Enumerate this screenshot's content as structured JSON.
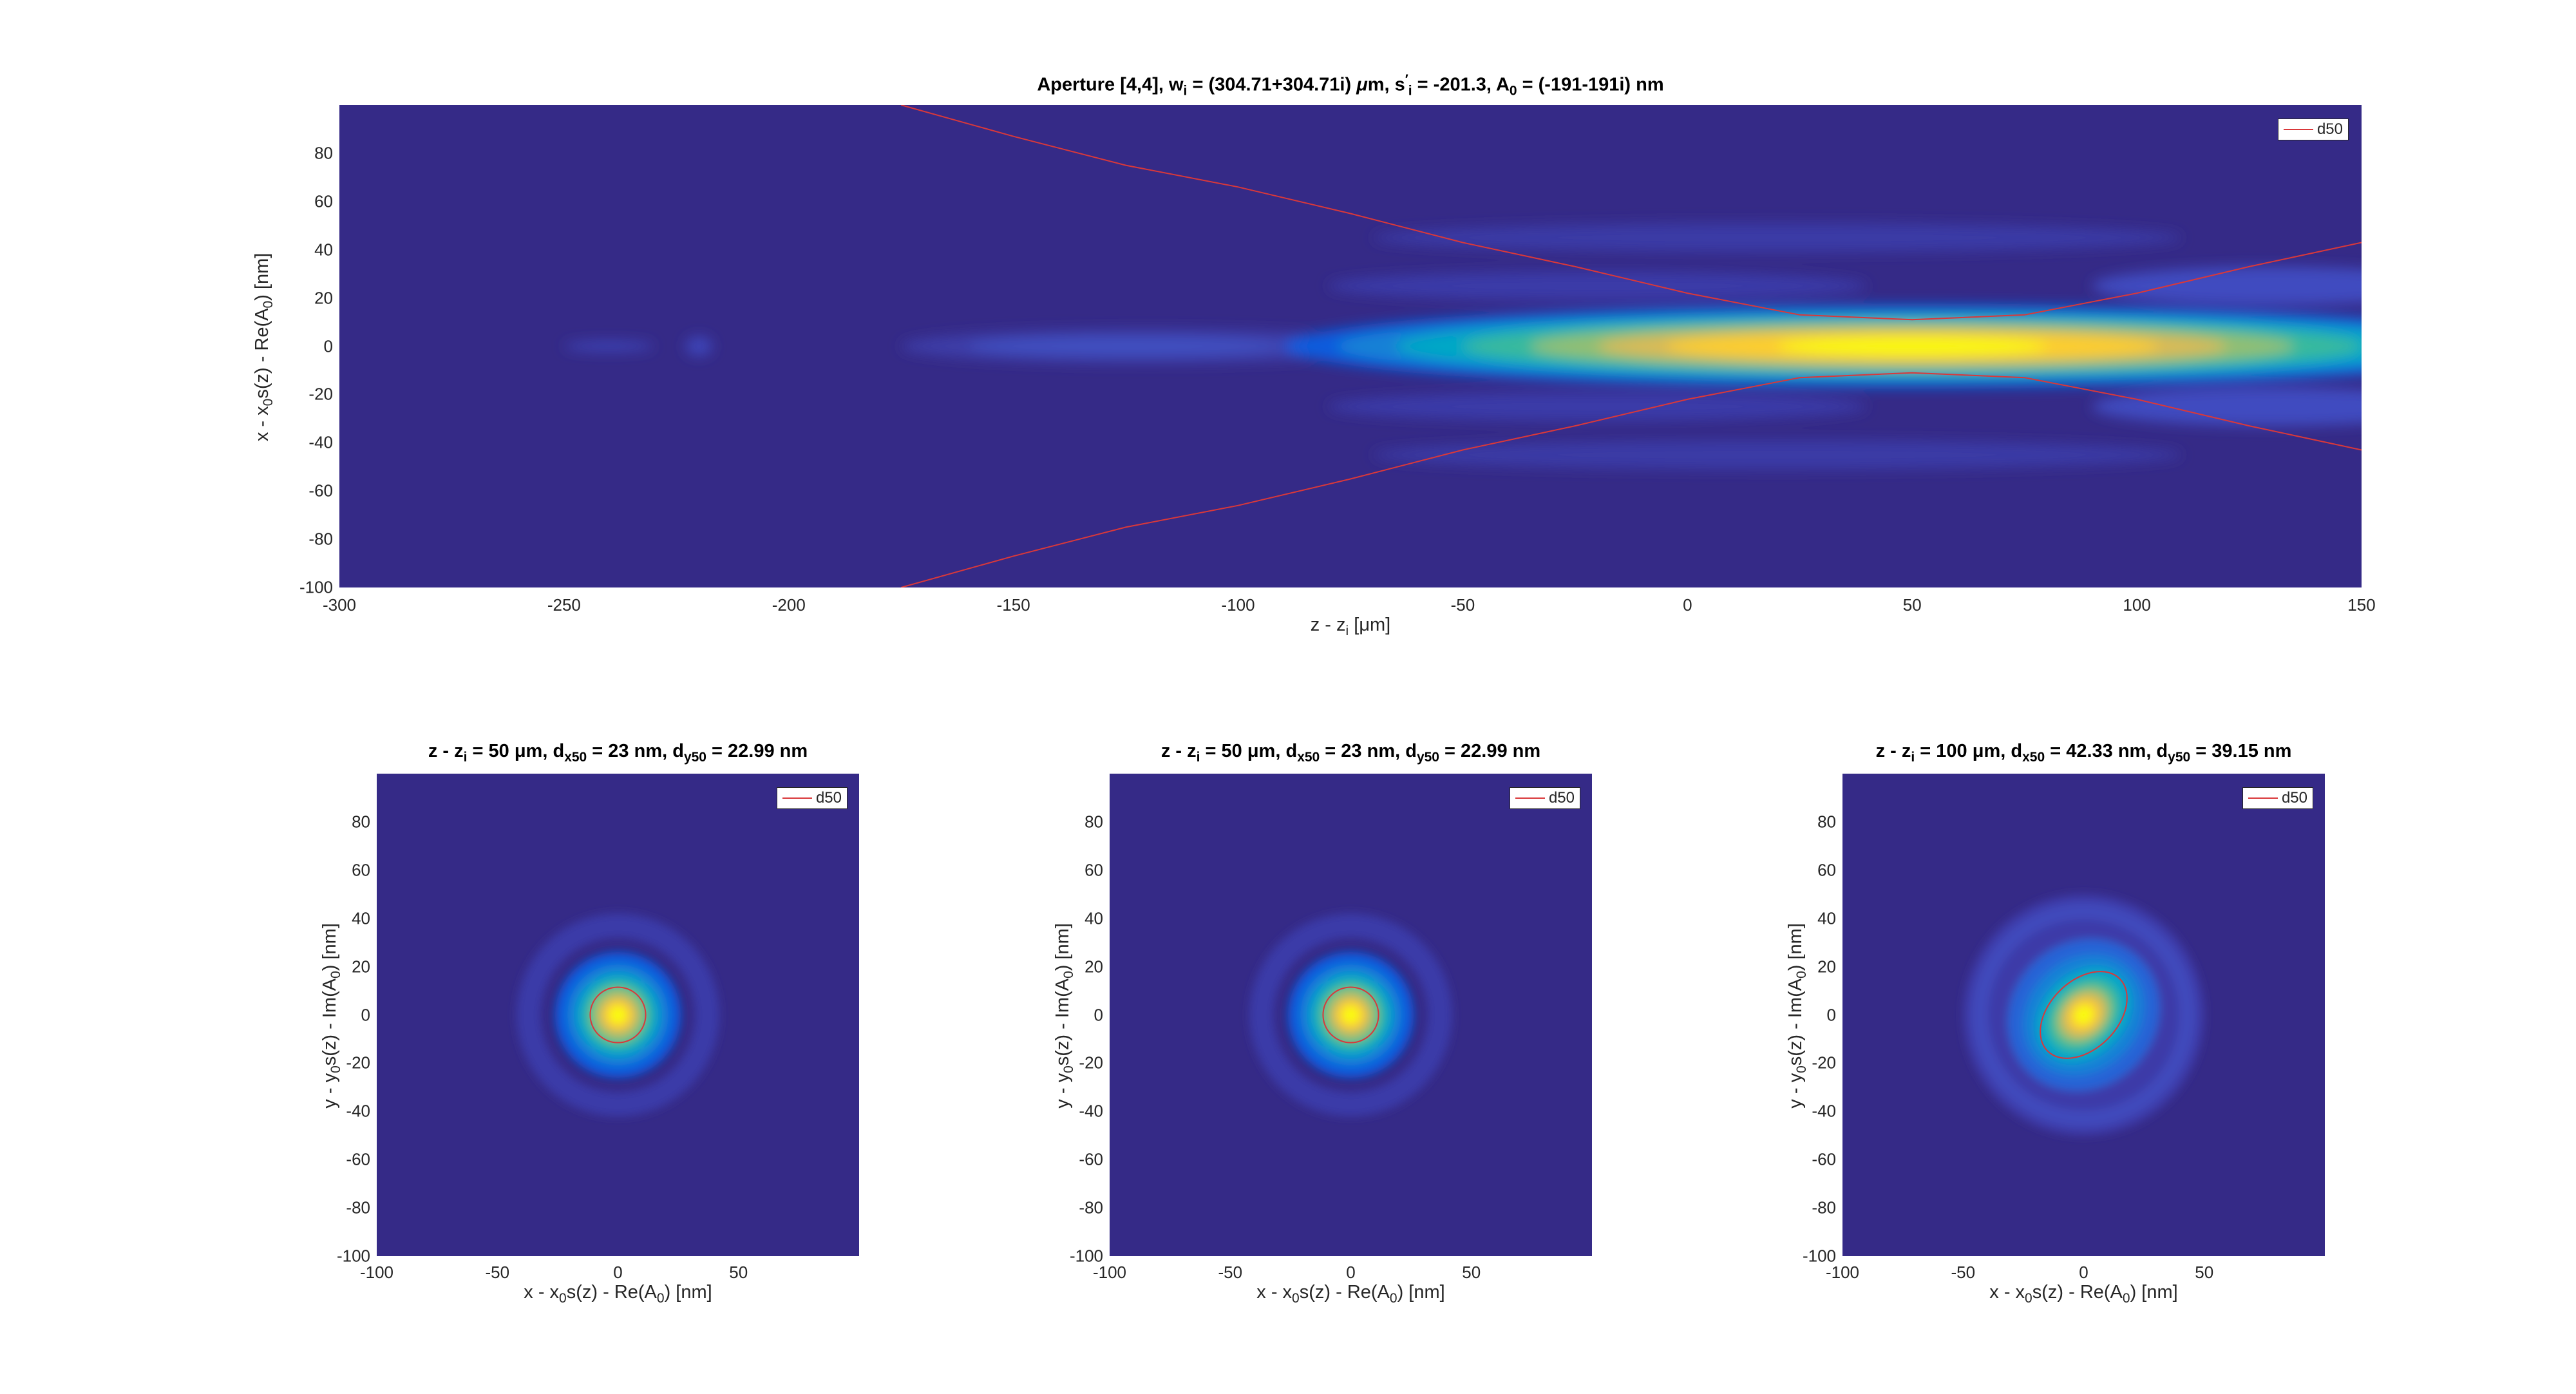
{
  "colors": {
    "background_level": "#352a87",
    "colormap": [
      "#352a87",
      "#0f5cdd",
      "#1481d6",
      "#06a7c6",
      "#38b99e",
      "#92bf73",
      "#d9ba56",
      "#fcce2e",
      "#f9fb0e"
    ],
    "contour": "#d9383a"
  },
  "top": {
    "title": {
      "pre": "Aperture [4,4], w",
      "s1": "i",
      "mid1": " = (304.71+304.71i) ",
      "mu": "μ",
      "mid2": "m, s",
      "s2": "i",
      "prime": "′",
      "mid3": " = -201.3, A",
      "s3": "0",
      "post": " = (-191-191i) nm"
    },
    "xlabel": {
      "pre": "z - z",
      "sub": "i",
      "post": " [μm]"
    },
    "ylabel": {
      "pre": "x - x",
      "s1": "0",
      "mid": "s(z) - Re(A",
      "s2": "0",
      "post": ") [nm]"
    },
    "legend": "d50"
  },
  "bottom": [
    {
      "title": {
        "pre": "z - z",
        "s1": "i",
        "mid1": " = 50 μm, d",
        "s2": "x50",
        "mid2": " = 23 nm, d",
        "s3": "y50",
        "post": " = 22.99 nm"
      },
      "legend": "d50"
    },
    {
      "title": {
        "pre": "z - z",
        "s1": "i",
        "mid1": " = 50 μm, d",
        "s2": "x50",
        "mid2": " = 23 nm, d",
        "s3": "y50",
        "post": " = 22.99 nm"
      },
      "legend": "d50"
    },
    {
      "title": {
        "pre": "z - z",
        "s1": "i",
        "mid1": " = 100 μm, d",
        "s2": "x50",
        "mid2": " = 42.33 nm, d",
        "s3": "y50",
        "post": " = 39.15 nm"
      },
      "legend": "d50"
    }
  ],
  "bottom_xlabel": {
    "pre": "x - x",
    "s1": "0",
    "mid": "s(z) - Re(A",
    "s2": "0",
    "post": ") [nm]"
  },
  "bottom_ylabel": {
    "pre": "y - y",
    "s1": "0",
    "mid": "s(z) - Im(A",
    "s2": "0",
    "post": ") [nm]"
  },
  "chart_data": [
    {
      "type": "heatmap",
      "title": "Aperture [4,4], wi = (304.71+304.71i) μm, s′i = -201.3, A0 = (-191-191i) nm",
      "xlabel": "z - zi [μm]",
      "ylabel": "x - x0s(z) - Re(A0) [nm]",
      "xlim": [
        -300,
        150
      ],
      "ylim": [
        -100,
        100
      ],
      "xticks": [
        -300,
        -250,
        -200,
        -150,
        -100,
        -50,
        0,
        50,
        100,
        150
      ],
      "yticks": [
        -100,
        -80,
        -60,
        -40,
        -20,
        0,
        20,
        40,
        60,
        80
      ],
      "peak": {
        "z": 50,
        "x": 0
      },
      "legend": [
        "d50"
      ],
      "legend_location": "top-right",
      "d50_curve": {
        "z": [
          -175,
          -150,
          -125,
          -100,
          -75,
          -50,
          -25,
          0,
          25,
          50,
          75,
          100,
          125,
          150
        ],
        "x_upper": [
          100,
          87,
          75,
          66,
          55,
          43,
          33,
          22,
          13,
          11,
          13,
          22,
          33,
          43
        ],
        "x_lower": [
          -100,
          -87,
          -75,
          -66,
          -55,
          -43,
          -33,
          -22,
          -13,
          -11,
          -13,
          -22,
          -33,
          -43
        ]
      }
    },
    {
      "type": "heatmap",
      "title": "z - zi = 50 μm, dx50 = 23 nm, dy50 = 22.99 nm",
      "xlabel": "x - x0s(z) - Re(A0) [nm]",
      "ylabel": "y - y0s(z) - Im(A0) [nm]",
      "xlim": [
        -100,
        100
      ],
      "ylim": [
        -100,
        100
      ],
      "xticks": [
        -100,
        -50,
        0,
        50
      ],
      "yticks": [
        -100,
        -80,
        -60,
        -40,
        -20,
        0,
        20,
        40,
        60,
        80
      ],
      "d50": {
        "dx": 23,
        "dy": 22.99,
        "tilt_deg": 0
      },
      "legend": [
        "d50"
      ],
      "legend_location": "top-right"
    },
    {
      "type": "heatmap",
      "title": "z - zi = 50 μm, dx50 = 23 nm, dy50 = 22.99 nm",
      "xlabel": "x - x0s(z) - Re(A0) [nm]",
      "ylabel": "y - y0s(z) - Im(A0) [nm]",
      "xlim": [
        -100,
        100
      ],
      "ylim": [
        -100,
        100
      ],
      "xticks": [
        -100,
        -50,
        0,
        50
      ],
      "yticks": [
        -100,
        -80,
        -60,
        -40,
        -20,
        0,
        20,
        40,
        60,
        80
      ],
      "d50": {
        "dx": 23,
        "dy": 22.99,
        "tilt_deg": 0
      },
      "legend": [
        "d50"
      ],
      "legend_location": "top-right"
    },
    {
      "type": "heatmap",
      "title": "z - zi = 100 μm, dx50 = 42.33 nm, dy50 = 39.15 nm",
      "xlabel": "x - x0s(z) - Re(A0) [nm]",
      "ylabel": "y - y0s(z) - Im(A0) [nm]",
      "xlim": [
        -100,
        100
      ],
      "ylim": [
        -100,
        100
      ],
      "xticks": [
        -100,
        -50,
        0,
        50
      ],
      "yticks": [
        -100,
        -80,
        -60,
        -40,
        -20,
        0,
        20,
        40,
        60,
        80
      ],
      "d50": {
        "dx": 42.33,
        "dy": 39.15,
        "tilt_deg": 45
      },
      "legend": [
        "d50"
      ],
      "legend_location": "top-right"
    }
  ]
}
